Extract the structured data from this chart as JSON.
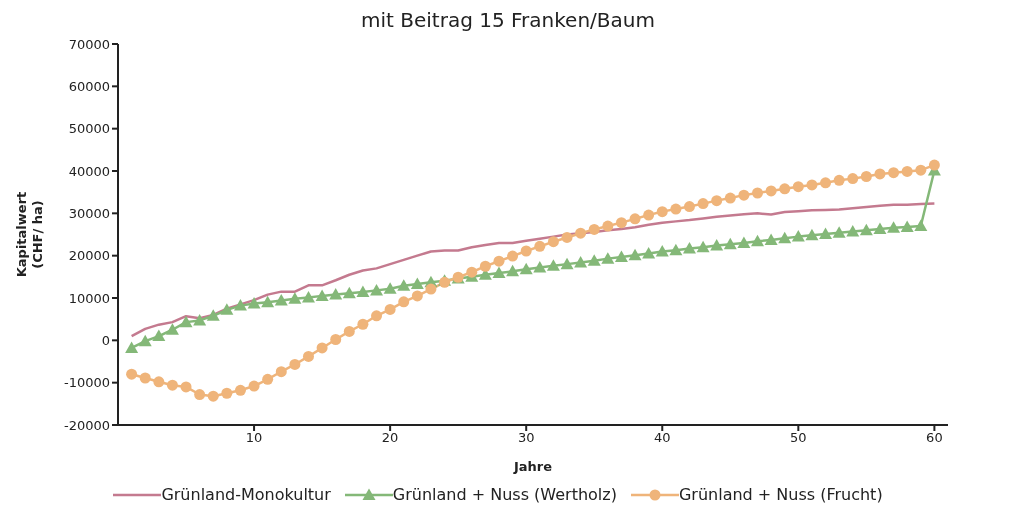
{
  "chart_data": {
    "type": "line",
    "title": "mit Beitrag 15 Franken/Baum",
    "xlabel": "Jahre",
    "ylabel": "Kapitalwert\n(CHF/ ha)",
    "x": [
      1,
      2,
      3,
      4,
      5,
      6,
      7,
      8,
      9,
      10,
      11,
      12,
      13,
      14,
      15,
      16,
      17,
      18,
      19,
      20,
      21,
      22,
      23,
      24,
      25,
      26,
      27,
      28,
      29,
      30,
      31,
      32,
      33,
      34,
      35,
      36,
      37,
      38,
      39,
      40,
      41,
      42,
      43,
      44,
      45,
      46,
      47,
      48,
      49,
      50,
      51,
      52,
      53,
      54,
      55,
      56,
      57,
      58,
      59,
      60
    ],
    "xlim": [
      0,
      61
    ],
    "xticks": [
      10,
      20,
      30,
      40,
      50,
      60
    ],
    "ylim": [
      -20000,
      70000
    ],
    "yticks": [
      -20000,
      -10000,
      0,
      10000,
      20000,
      30000,
      40000,
      50000,
      60000,
      70000
    ],
    "legend": "bottom",
    "line_style": "solid",
    "series": [
      {
        "name": "Grünland-Monokultur",
        "color": "#c47a8f",
        "marker": "none",
        "values": [
          1000,
          2700,
          3700,
          4300,
          5700,
          5200,
          6000,
          7500,
          8500,
          9500,
          10800,
          11500,
          11500,
          13000,
          13000,
          14200,
          15500,
          16500,
          17000,
          18000,
          19000,
          20000,
          21000,
          21200,
          21200,
          22000,
          22500,
          23000,
          23000,
          23500,
          24000,
          24500,
          25000,
          25300,
          25600,
          26000,
          26300,
          26700,
          27300,
          27800,
          28100,
          28400,
          28800,
          29200,
          29500,
          29800,
          30000,
          29700,
          30300,
          30500,
          30700,
          30800,
          30900,
          31200,
          31500,
          31800,
          32000,
          32000,
          32200,
          32300
        ]
      },
      {
        "name": "Grünland + Nuss (Wertholz)",
        "color": "#84b878",
        "marker": "triangle",
        "values": [
          -1800,
          -200,
          1000,
          2500,
          4300,
          4700,
          5800,
          7200,
          8200,
          8700,
          9000,
          9400,
          9800,
          10100,
          10500,
          10800,
          11100,
          11400,
          11800,
          12200,
          12900,
          13300,
          13700,
          14100,
          14600,
          15000,
          15500,
          15900,
          16300,
          16800,
          17200,
          17600,
          18000,
          18400,
          18800,
          19300,
          19700,
          20100,
          20500,
          21000,
          21300,
          21700,
          22000,
          22400,
          22700,
          23000,
          23400,
          23700,
          24100,
          24500,
          24800,
          25100,
          25400,
          25700,
          26000,
          26300,
          26600,
          26800,
          27000,
          40100
        ]
      },
      {
        "name": "Grünland + Nuss (Frucht)",
        "color": "#efb47a",
        "marker": "circle",
        "values": [
          -8000,
          -8900,
          -9800,
          -10600,
          -11000,
          -12800,
          -13200,
          -12500,
          -11800,
          -10800,
          -9200,
          -7400,
          -5700,
          -3800,
          -1800,
          200,
          2100,
          3800,
          5800,
          7300,
          9100,
          10500,
          12100,
          13700,
          14900,
          16100,
          17500,
          18700,
          19900,
          21100,
          22200,
          23300,
          24300,
          25300,
          26200,
          27000,
          27800,
          28700,
          29600,
          30400,
          31000,
          31600,
          32300,
          33000,
          33600,
          34300,
          34800,
          35300,
          35800,
          36300,
          36700,
          37200,
          37800,
          38200,
          38700,
          39300,
          39600,
          39900,
          40200,
          41400
        ]
      }
    ]
  }
}
